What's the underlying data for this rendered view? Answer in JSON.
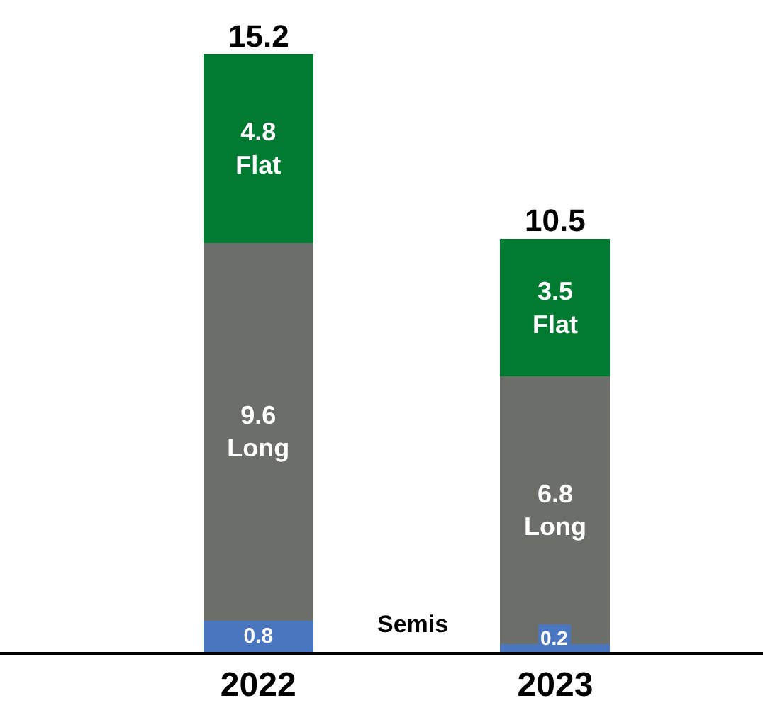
{
  "chart_data": {
    "type": "bar",
    "stacked": true,
    "categories": [
      "2022",
      "2023"
    ],
    "series": [
      {
        "name": "Semis",
        "color": "#4a76bf",
        "values": [
          0.8,
          0.2
        ]
      },
      {
        "name": "Long",
        "color": "#6b6e69",
        "values": [
          9.6,
          6.8
        ]
      },
      {
        "name": "Flat",
        "color": "#017a32",
        "values": [
          4.8,
          3.5
        ]
      }
    ],
    "data_labels": true,
    "totals": [
      "15.2",
      "10.5"
    ],
    "legend": false
  }
}
